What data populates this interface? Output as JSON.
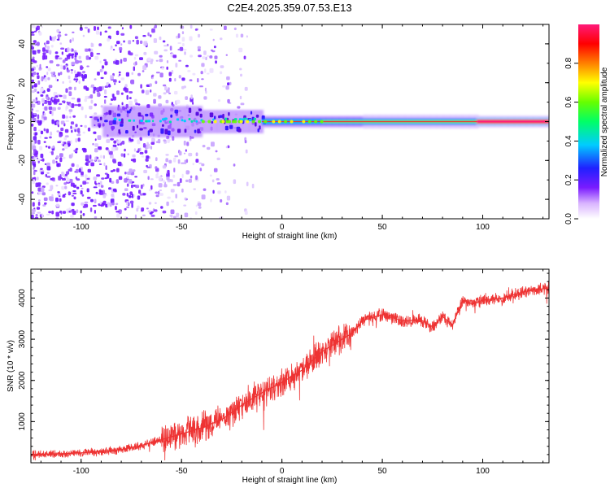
{
  "title": "C2E4.2025.359.07.53.E13",
  "chart_data": [
    {
      "type": "heatmap",
      "xlabel": "Height of straight line (km)",
      "ylabel": "Frequency (Hz)",
      "xlim": [
        -125,
        133
      ],
      "ylim": [
        -50,
        50
      ],
      "xticks": [
        -100,
        -50,
        0,
        50,
        100
      ],
      "yticks": [
        -40,
        -20,
        0,
        20,
        40
      ],
      "colorbar": {
        "label": "Normalized spectral amplitude",
        "range": [
          0,
          1
        ],
        "ticks": [
          "0.0",
          "0.2",
          "0.4",
          "0.6",
          "0.8"
        ],
        "tick_values": [
          0,
          0.2,
          0.4,
          0.6,
          0.8
        ],
        "colors": [
          "#ffffff",
          "#d9b3ff",
          "#7a1cff",
          "#2020ff",
          "#00ccff",
          "#00ff66",
          "#66ff00",
          "#ffff00",
          "#ff8000",
          "#ff0000",
          "#ff1a7a"
        ]
      },
      "description_points": {
        "core_line_freq": 0,
        "peak_amplitude_region": [
          95,
          133
        ]
      }
    },
    {
      "type": "line",
      "xlabel": "Height of straight line (km)",
      "ylabel": "SNR (10 * v/v)",
      "xlim": [
        -125,
        133
      ],
      "ylim": [
        0,
        4700
      ],
      "xticks": [
        -100,
        -50,
        0,
        50,
        100
      ],
      "yticks": [
        1000,
        2000,
        3000,
        4000
      ],
      "series": [
        {
          "name": "SNR",
          "color": "#ee3333",
          "x": [
            -125,
            -110,
            -100,
            -90,
            -80,
            -70,
            -60,
            -50,
            -40,
            -30,
            -20,
            -10,
            0,
            10,
            20,
            30,
            35,
            40,
            50,
            60,
            70,
            75,
            80,
            85,
            90,
            95,
            100,
            110,
            120,
            133
          ],
          "y": [
            200,
            220,
            240,
            270,
            320,
            420,
            560,
            700,
            850,
            1050,
            1400,
            1700,
            1950,
            2250,
            2700,
            3000,
            3150,
            3450,
            3600,
            3450,
            3450,
            3300,
            3550,
            3350,
            3950,
            3850,
            3950,
            4000,
            4150,
            4250
          ]
        }
      ]
    }
  ]
}
